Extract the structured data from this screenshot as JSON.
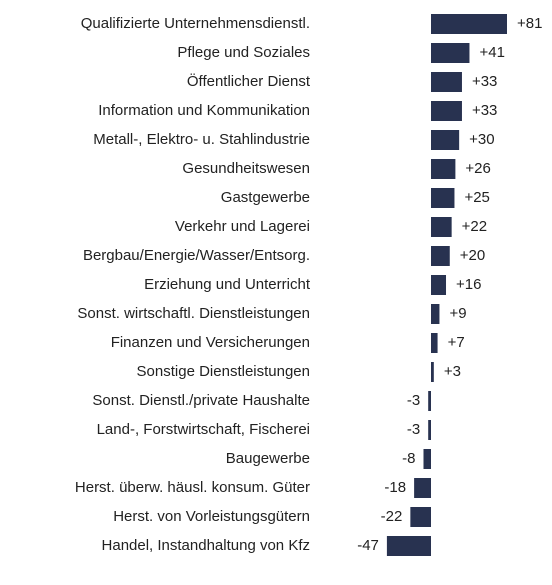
{
  "chart_data": {
    "type": "hbar",
    "categories": [
      "Qualifizierte Unternehmensdienstl.",
      "Pflege und Soziales",
      "Öffentlicher Dienst",
      "Information und Kommunikation",
      "Metall-, Elektro- u. Stahlindustrie",
      "Gesundheitswesen",
      "Gastgewerbe",
      "Verkehr und Lagerei",
      "Bergbau/Energie/Wasser/Entsorg.",
      "Erziehung und Unterricht",
      "Sonst. wirtschaftl. Dienstleistungen",
      "Finanzen und Versicherungen",
      "Sonstige Dienstleistungen",
      "Sonst. Dienstl./private Haushalte",
      "Land-, Forstwirtschaft, Fischerei",
      "Baugewerbe",
      "Herst. überw. häusl. konsum. Güter",
      "Herst. von Vorleistungsgütern",
      "Handel, Instandhaltung von Kfz"
    ],
    "values": [
      81,
      41,
      33,
      33,
      30,
      26,
      25,
      22,
      20,
      16,
      9,
      7,
      3,
      -3,
      -3,
      -8,
      -18,
      -22,
      -47
    ],
    "value_labels": [
      "+81",
      "+41",
      "+33",
      "+33",
      "+30",
      "+26",
      "+25",
      "+22",
      "+20",
      "+16",
      "+9",
      "+7",
      "+3",
      "-3",
      "-3",
      "-8",
      "-18",
      "-22",
      "-47"
    ],
    "color": "#283250"
  }
}
